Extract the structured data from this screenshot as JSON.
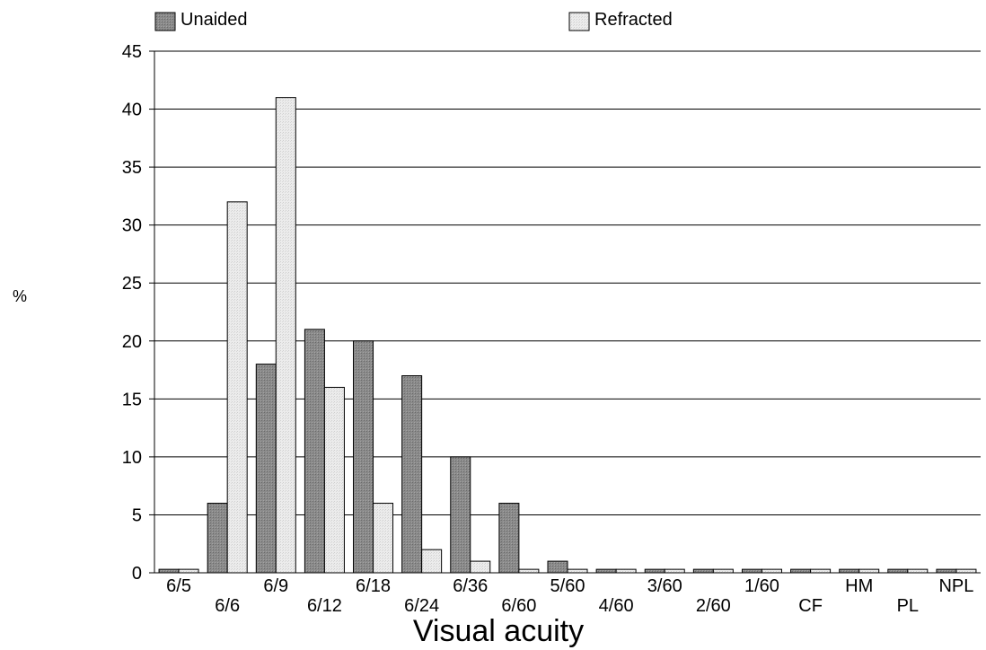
{
  "chart_data": {
    "type": "bar",
    "title": "",
    "xlabel": "Visual acuity",
    "ylabel": "%",
    "ylim": [
      0,
      45
    ],
    "yticks": [
      0,
      5,
      10,
      15,
      20,
      25,
      30,
      35,
      40,
      45
    ],
    "grid": true,
    "legend_position": "top",
    "categories": [
      "6/5",
      "6/6",
      "6/9",
      "6/12",
      "6/18",
      "6/24",
      "6/36",
      "6/60",
      "5/60",
      "4/60",
      "3/60",
      "2/60",
      "1/60",
      "CF",
      "HM",
      "PL",
      "NPL"
    ],
    "series": [
      {
        "name": "Unaided",
        "color": "#888888",
        "values": [
          0.3,
          6,
          18,
          21,
          20,
          17,
          10,
          6,
          1,
          0.3,
          0.3,
          0.3,
          0.3,
          0.3,
          0.3,
          0.3,
          0.3
        ]
      },
      {
        "name": "Refracted",
        "color": "#e6e6e6",
        "values": [
          0.3,
          32,
          41,
          16,
          6,
          2,
          1,
          0.3,
          0.3,
          0.3,
          0.3,
          0.3,
          0.3,
          0.3,
          0.3,
          0.3,
          0.3
        ]
      }
    ]
  }
}
